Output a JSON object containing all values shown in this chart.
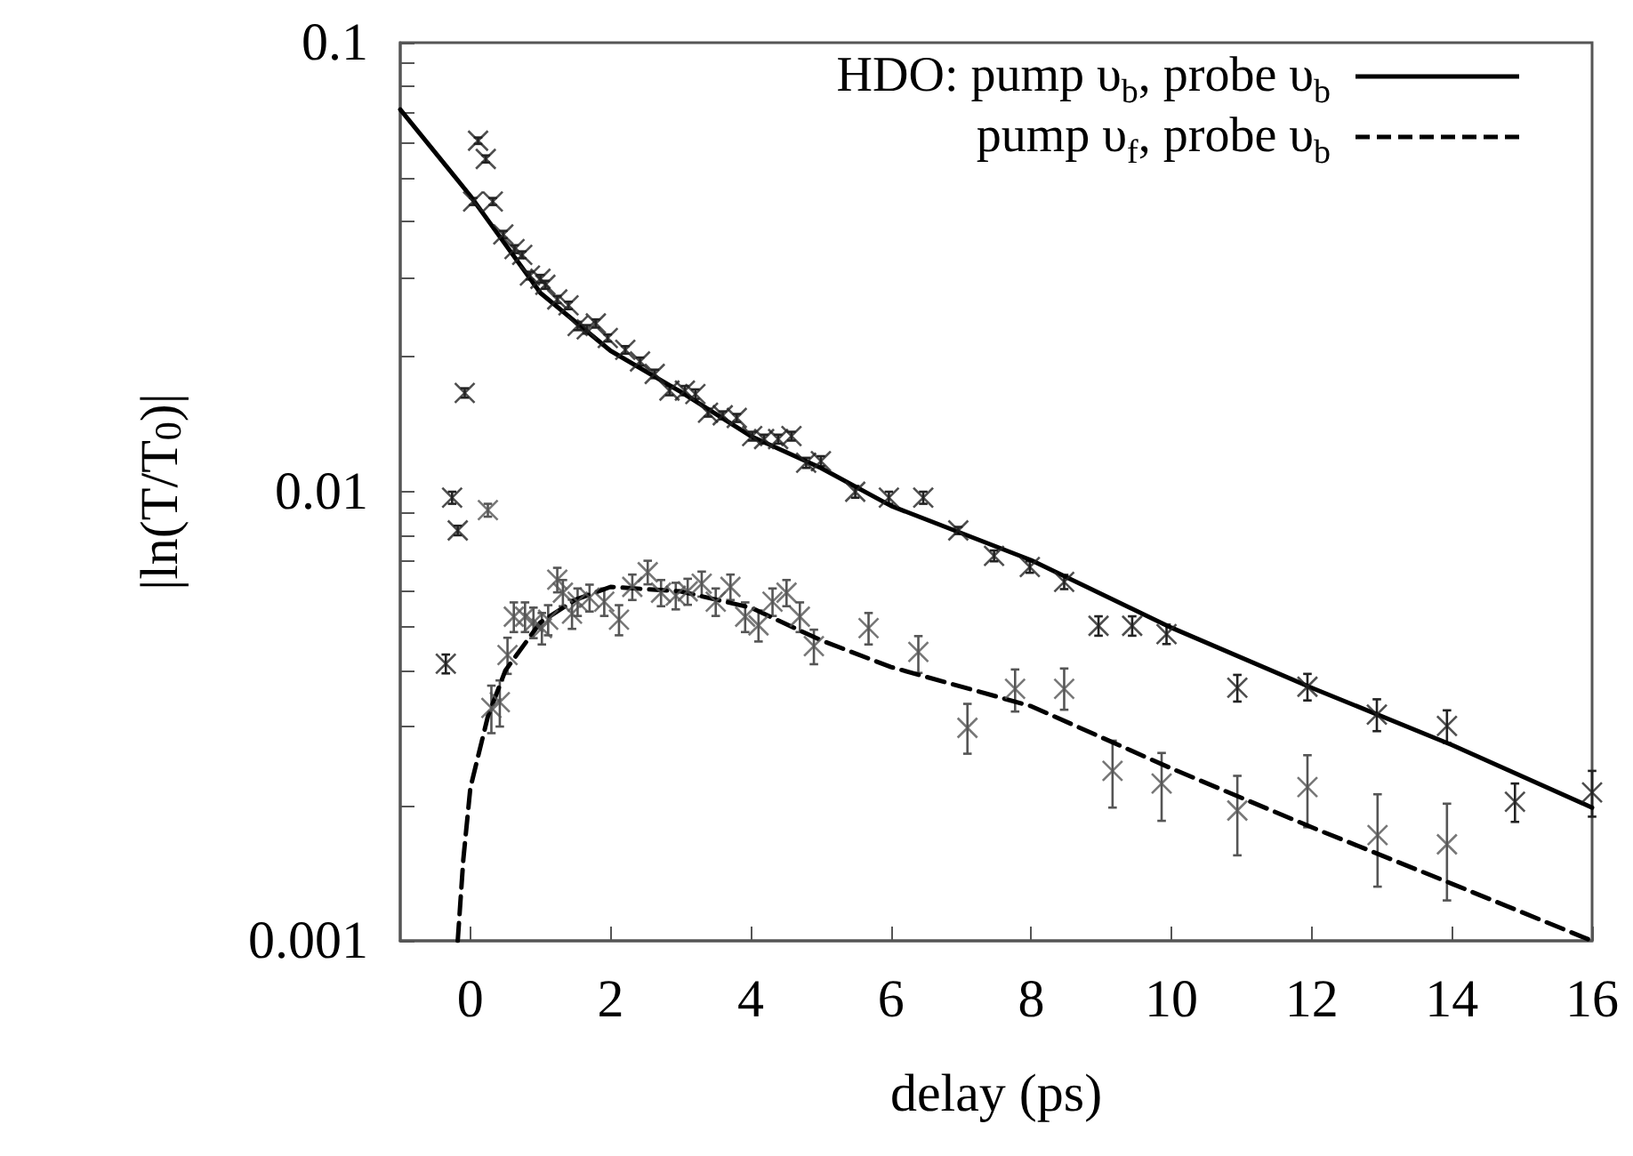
{
  "chart_data": {
    "type": "scatter",
    "xlabel": "delay (ps)",
    "ylabel": "|ln(T/T$_{0}$)|",
    "xlim": [
      -1,
      16
    ],
    "xticks": [
      0,
      2,
      4,
      6,
      8,
      10,
      12,
      14,
      16
    ],
    "ylim": [
      0.001,
      0.1
    ],
    "yticks": [
      {
        "value": 0.001,
        "label": "0.001"
      },
      {
        "value": 0.002,
        "label": null
      },
      {
        "value": 0.003,
        "label": null
      },
      {
        "value": 0.004,
        "label": null
      },
      {
        "value": 0.005,
        "label": null
      },
      {
        "value": 0.006,
        "label": null
      },
      {
        "value": 0.007,
        "label": null
      },
      {
        "value": 0.008,
        "label": null
      },
      {
        "value": 0.009,
        "label": null
      },
      {
        "value": 0.01,
        "label": "0.01"
      },
      {
        "value": 0.02,
        "label": null
      },
      {
        "value": 0.03,
        "label": null
      },
      {
        "value": 0.04,
        "label": null
      },
      {
        "value": 0.05,
        "label": null
      },
      {
        "value": 0.06,
        "label": null
      },
      {
        "value": 0.07,
        "label": null
      },
      {
        "value": 0.08,
        "label": null
      },
      {
        "value": 0.09,
        "label": null
      },
      {
        "value": 0.1,
        "label": "0.1"
      }
    ],
    "log": "y",
    "legend": "top right",
    "series": [
      {
        "type": "line",
        "name": "HDO: pump υ$_{b}$, probe υ$_{b}$",
        "color": "#000000",
        "line_style": "solid",
        "x": [
          -1,
          0,
          1,
          2,
          3,
          4,
          5,
          6,
          8,
          10,
          12,
          14,
          16
        ],
        "values": [
          0.071,
          0.0456,
          0.0277,
          0.0206,
          0.0167,
          0.0133,
          0.0113,
          0.0093,
          0.00704,
          0.00498,
          0.00366,
          0.00273,
          0.00198
        ]
      },
      {
        "type": "line",
        "name": "pump υ$_{f}$, probe υ$_{b}$",
        "color": "#000000",
        "line_style": "dashed",
        "x": [
          -0.18,
          -0.1,
          0,
          0.25,
          0.5,
          1,
          1.5,
          2,
          3,
          4,
          5,
          6,
          8,
          10,
          12,
          14,
          16
        ],
        "values": [
          0.001,
          0.00152,
          0.00219,
          0.00316,
          0.004,
          0.00512,
          0.00575,
          0.00614,
          0.006,
          0.00552,
          0.00467,
          0.00407,
          0.00333,
          0.00242,
          0.00179,
          0.00134,
          0.001
        ]
      },
      {
        "type": "scatter",
        "color": "#222222",
        "marker": "cross",
        "x": [
          -0.35,
          -0.26,
          -0.18,
          -0.08,
          0.04,
          0.11,
          0.22,
          0.32,
          0.47,
          0.63,
          0.74,
          0.85,
          1.0,
          1.07,
          1.24,
          1.4,
          1.53,
          1.66,
          1.79,
          1.96,
          2.21,
          2.42,
          2.63,
          2.84,
          3.06,
          3.21,
          3.39,
          3.6,
          3.8,
          4.02,
          4.19,
          4.39,
          4.58,
          4.79,
          5.0,
          5.49,
          5.97,
          6.46,
          6.96,
          7.47,
          7.98,
          8.47,
          8.96,
          9.44,
          9.93,
          10.94,
          11.94,
          12.93,
          13.93,
          14.9,
          16
        ],
        "values": [
          0.00414,
          0.0097,
          0.0082,
          0.0166,
          0.0443,
          0.0605,
          0.0551,
          0.0443,
          0.0374,
          0.0347,
          0.0337,
          0.0303,
          0.0298,
          0.0289,
          0.0268,
          0.026,
          0.0234,
          0.023,
          0.0237,
          0.022,
          0.0207,
          0.0195,
          0.0183,
          0.0168,
          0.0168,
          0.0165,
          0.015,
          0.0148,
          0.0146,
          0.0133,
          0.0131,
          0.0131,
          0.0133,
          0.0116,
          0.0117,
          0.01,
          0.0097,
          0.0097,
          0.0082,
          0.0072,
          0.0068,
          0.0063,
          0.00503,
          0.00503,
          0.00482,
          0.00366,
          0.00368,
          0.00319,
          0.00301,
          0.00204,
          0.00214
        ],
        "errors": [
          0.0002,
          0.0003,
          0.0002,
          0.0004,
          0.0008,
          0.001,
          0.001,
          0.0008,
          0.0007,
          0.0007,
          0.0006,
          0.0006,
          0.0006,
          0.0006,
          0.0005,
          0.0005,
          0.0005,
          0.0005,
          0.0005,
          0.0004,
          0.0004,
          0.0004,
          0.0004,
          0.0004,
          0.0004,
          0.0004,
          0.0003,
          0.0003,
          0.0003,
          0.0003,
          0.0003,
          0.0003,
          0.0003,
          0.0003,
          0.0003,
          0.0003,
          0.0003,
          0.0003,
          0.00015,
          0.0002,
          0.0002,
          0.00023,
          0.00025,
          0.00025,
          0.00024,
          0.00025,
          0.00025,
          0.00026,
          0.00025,
          0.0002,
          0.00025
        ]
      },
      {
        "type": "scatter",
        "color": "#555555",
        "marker": "cross",
        "x": [
          0.25,
          0.3,
          0.42,
          0.53,
          0.62,
          0.78,
          0.9,
          1.02,
          1.11,
          1.24,
          1.32,
          1.45,
          1.53,
          1.7,
          1.91,
          2.12,
          2.31,
          2.53,
          2.72,
          2.93,
          3.1,
          3.3,
          3.5,
          3.71,
          3.92,
          4.11,
          4.31,
          4.51,
          4.7,
          4.9,
          5.68,
          6.39,
          7.09,
          7.77,
          8.47,
          9.16,
          9.86,
          10.94,
          11.94,
          12.94,
          13.93
        ],
        "values": [
          0.0091,
          0.0033,
          0.0034,
          0.00433,
          0.00527,
          0.00527,
          0.00512,
          0.00497,
          0.00519,
          0.00637,
          0.00596,
          0.00535,
          0.00569,
          0.00581,
          0.00569,
          0.00519,
          0.00614,
          0.00662,
          0.00596,
          0.00587,
          0.006,
          0.00624,
          0.00569,
          0.00614,
          0.00527,
          0.00504,
          0.00569,
          0.00596,
          0.00527,
          0.00453,
          0.00497,
          0.0044,
          0.00298,
          0.00364,
          0.00364,
          0.00239,
          0.00224,
          0.00195,
          0.0022,
          0.00172,
          0.00164
        ],
        "errors": [
          0.0003,
          0.0004,
          0.0004,
          0.0004,
          0.0004,
          0.0004,
          0.0004,
          0.0004,
          0.0004,
          0.0004,
          0.0004,
          0.0004,
          0.0004,
          0.0004,
          0.0004,
          0.0004,
          0.0004,
          0.0004,
          0.0004,
          0.0004,
          0.0004,
          0.0004,
          0.0004,
          0.0004,
          0.0004,
          0.0004,
          0.0004,
          0.0004,
          0.0004,
          0.0004,
          0.0004,
          [
            0.00395,
            0.00477
          ],
          [
            0.00261,
            0.00337
          ],
          [
            0.00324,
            0.00402
          ],
          [
            0.00327,
            0.00404
          ],
          [
            0.00198,
            0.00279
          ],
          [
            0.00185,
            0.00262
          ],
          [
            0.00155,
            0.00233
          ],
          [
            0.00179,
            0.00259
          ],
          [
            0.00132,
            0.00212
          ],
          [
            0.00123,
            0.00202
          ]
        ]
      }
    ]
  }
}
